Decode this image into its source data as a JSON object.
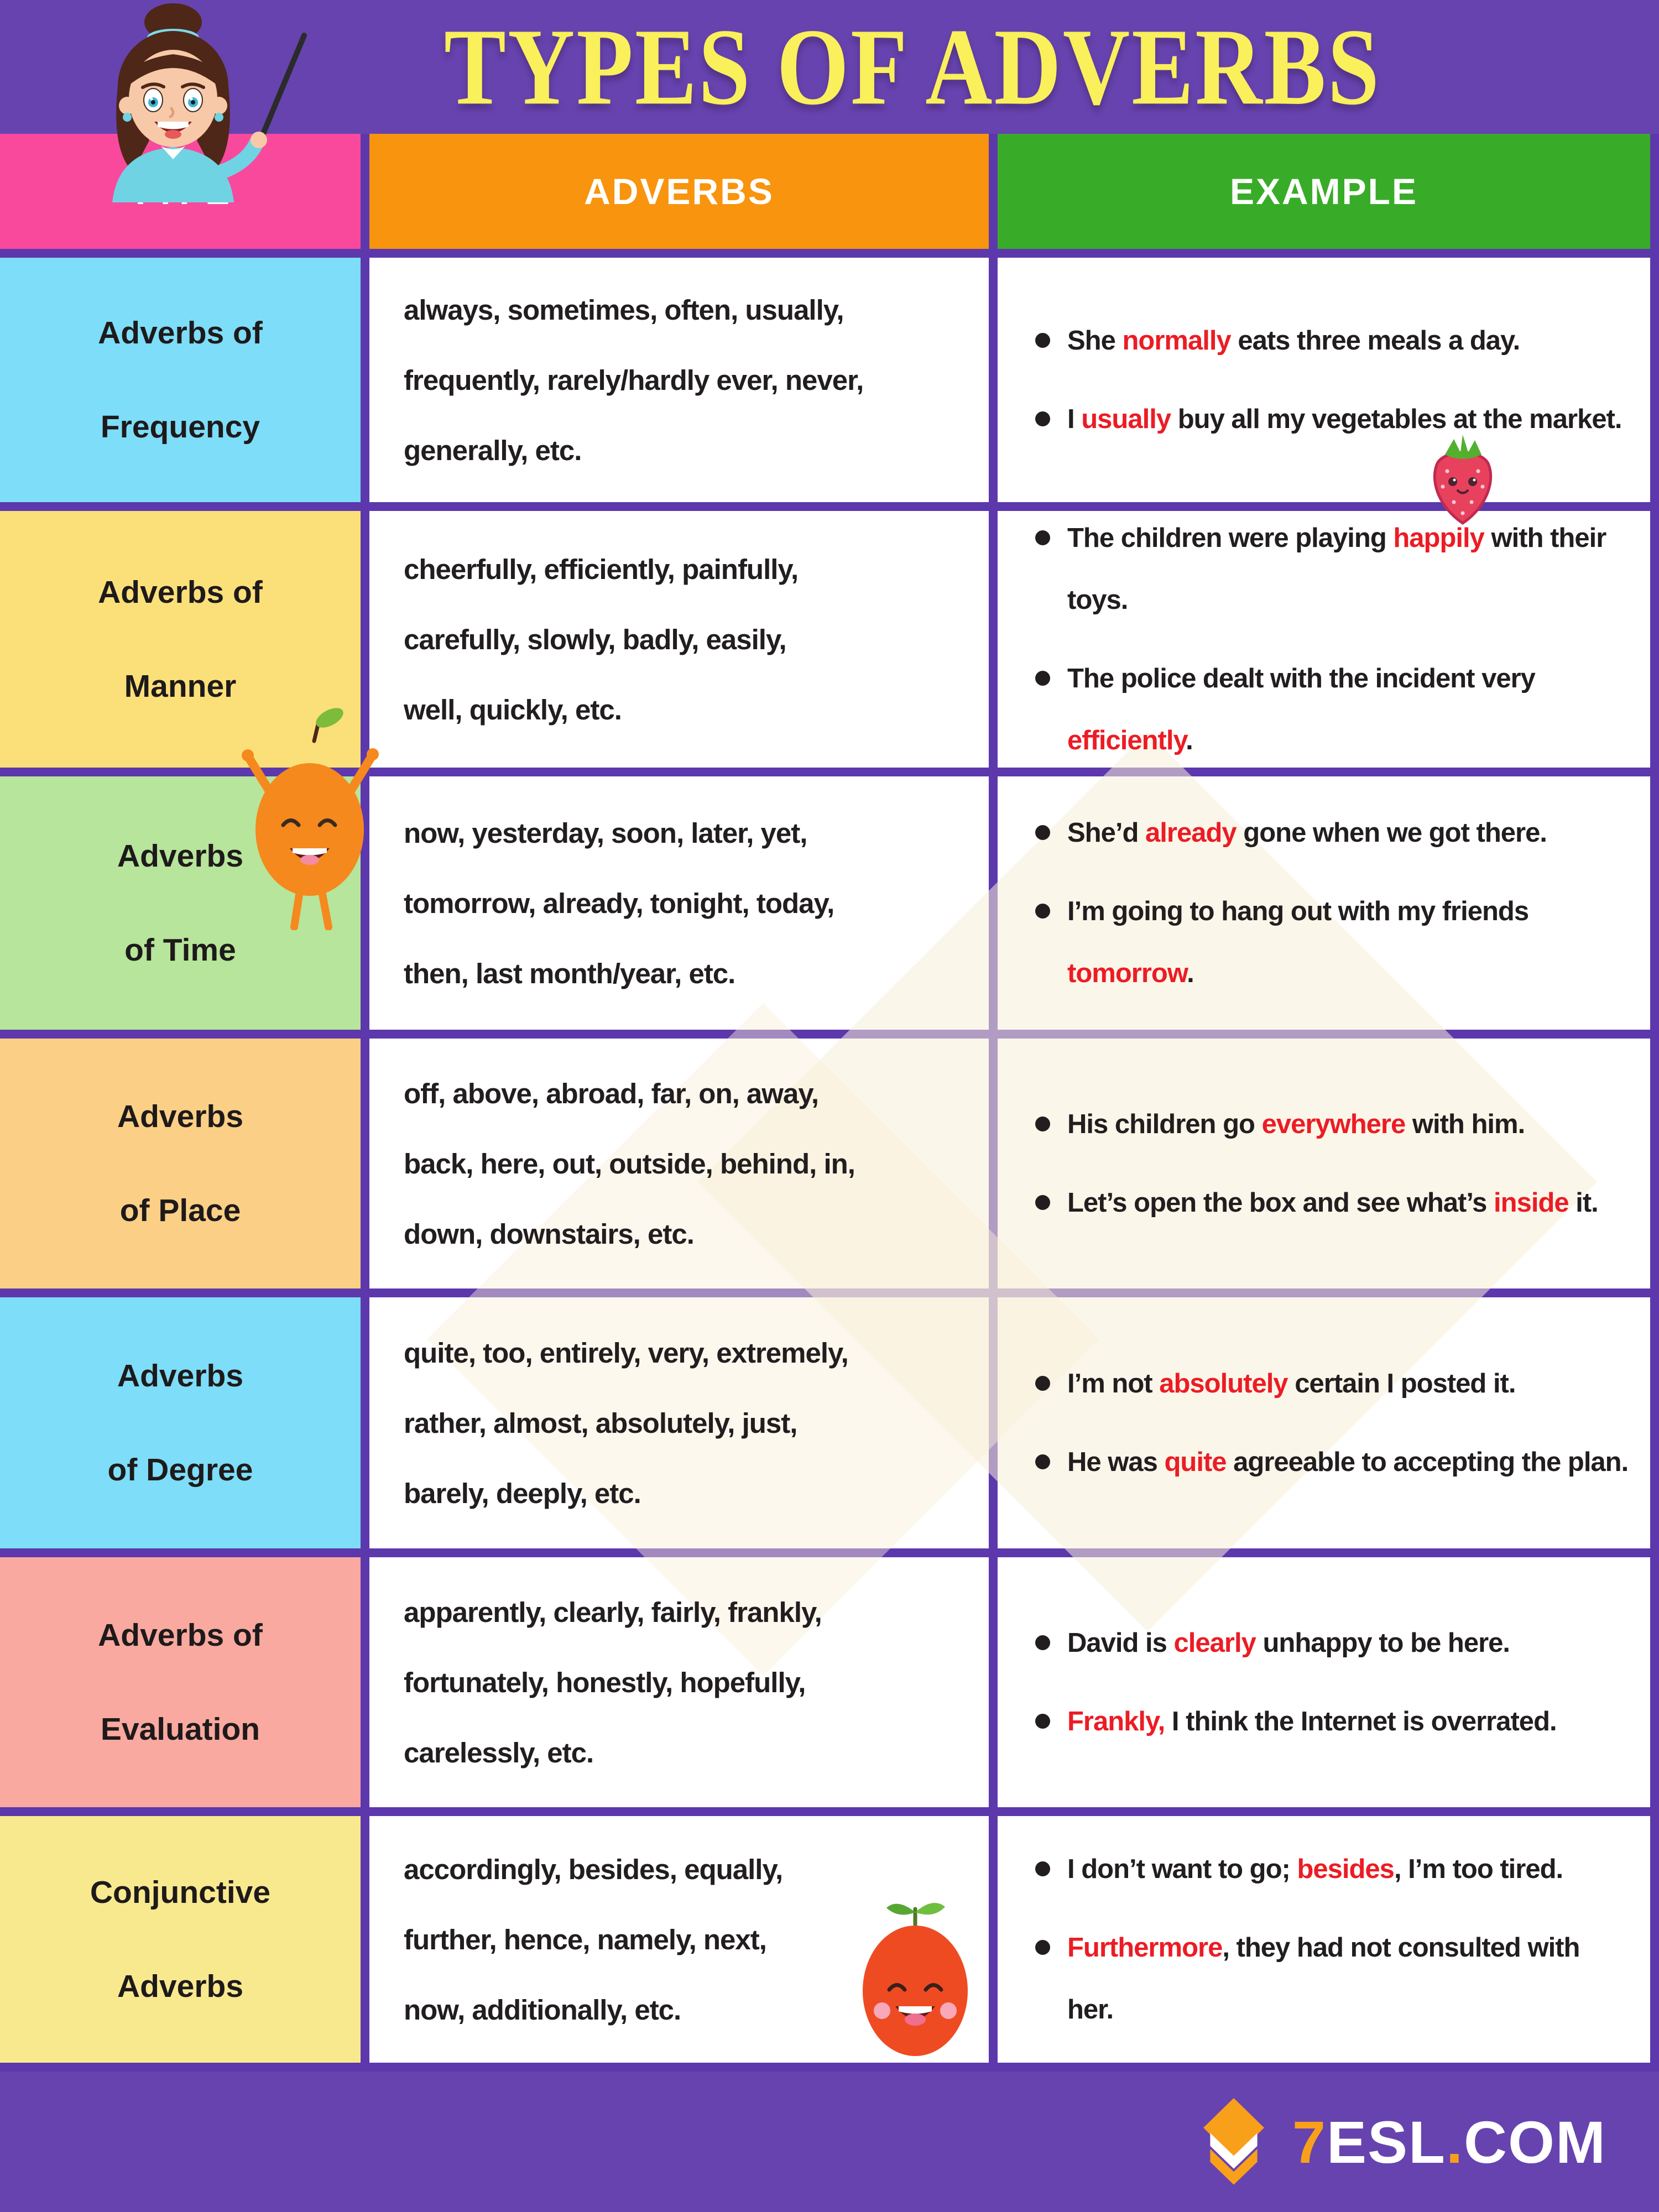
{
  "title": "TYPES OF ADVERBS",
  "table": {
    "headers": {
      "type": "TYPE",
      "adverbs": "ADVERBS",
      "example": "EXAMPLE"
    }
  },
  "rows": [
    {
      "type": "Adverbs of\nFrequency",
      "type_bg": "#7EDDF8",
      "adverbs": "always, sometimes, often, usually,\nfrequently, rarely/hardly ever, never,\ngenerally, etc.",
      "examples": [
        [
          {
            "t": "She "
          },
          {
            "t": "normally",
            "red": true
          },
          {
            "t": " eats three meals a day."
          }
        ],
        [
          {
            "t": "I "
          },
          {
            "t": "usually",
            "red": true
          },
          {
            "t": " buy all my vegetables at the market."
          }
        ]
      ]
    },
    {
      "type": "Adverbs of\nManner",
      "type_bg": "#FBE07A",
      "adverbs": "cheerfully, efficiently, painfully,\ncarefully, slowly, badly, easily,\nwell, quickly, etc.",
      "examples": [
        [
          {
            "t": "The children were playing "
          },
          {
            "t": "happily",
            "red": true
          },
          {
            "t": " with their toys."
          }
        ],
        [
          {
            "t": "The police dealt with the incident very "
          },
          {
            "t": "efficiently",
            "red": true
          },
          {
            "t": "."
          }
        ]
      ]
    },
    {
      "type": "Adverbs\nof Time",
      "type_bg": "#B7E59B",
      "adverbs": "now, yesterday, soon, later, yet,\ntomorrow, already, tonight, today,\nthen, last month/year, etc.",
      "examples": [
        [
          {
            "t": "She’d "
          },
          {
            "t": "already",
            "red": true
          },
          {
            "t": " gone when we got there."
          }
        ],
        [
          {
            "t": "I’m going to hang out with my friends "
          },
          {
            "t": "tomorrow",
            "red": true
          },
          {
            "t": "."
          }
        ]
      ]
    },
    {
      "type": "Adverbs\nof Place",
      "type_bg": "#FBD086",
      "adverbs": "off, above, abroad, far, on, away,\nback, here, out, outside, behind, in,\ndown, downstairs, etc.",
      "examples": [
        [
          {
            "t": "His children go "
          },
          {
            "t": "everywhere",
            "red": true
          },
          {
            "t": " with him."
          }
        ],
        [
          {
            "t": "Let’s open the box and see what’s "
          },
          {
            "t": "inside",
            "red": true
          },
          {
            "t": " it."
          }
        ]
      ]
    },
    {
      "type": "Adverbs\nof Degree",
      "type_bg": "#7EDDF8",
      "adverbs": "quite, too, entirely, very, extremely,\nrather, almost, absolutely, just,\nbarely, deeply, etc.",
      "examples": [
        [
          {
            "t": "I’m not "
          },
          {
            "t": "absolutely",
            "red": true
          },
          {
            "t": " certain I posted it."
          }
        ],
        [
          {
            "t": "He was "
          },
          {
            "t": "quite",
            "red": true
          },
          {
            "t": " agreeable to accepting the plan."
          }
        ]
      ]
    },
    {
      "type": "Adverbs of\nEvaluation",
      "type_bg": "#F9A99F",
      "adverbs": "apparently, clearly, fairly, frankly,\nfortunately, honestly, hopefully,\ncarelessly, etc.",
      "examples": [
        [
          {
            "t": "David is "
          },
          {
            "t": "clearly",
            "red": true
          },
          {
            "t": " unhappy to be here."
          }
        ],
        [
          {
            "t": "Frankly,",
            "red": true
          },
          {
            "t": " I think the Internet is overrated."
          }
        ]
      ]
    },
    {
      "type": "Conjunctive\nAdverbs",
      "type_bg": "#F8E98F",
      "adverbs": "accordingly, besides, equally,\nfurther, hence, namely, next,\nnow, additionally, etc.",
      "examples": [
        [
          {
            "t": "I don’t want to go; "
          },
          {
            "t": "besides",
            "red": true
          },
          {
            "t": ", I’m too tired."
          }
        ],
        [
          {
            "t": "Furthermore",
            "red": true
          },
          {
            "t": ", they had not consulted with her."
          }
        ]
      ]
    }
  ],
  "footer": {
    "brand_segments": [
      {
        "t": "7",
        "orange": true
      },
      {
        "t": "ESL"
      },
      {
        "t": ".",
        "orange": true
      },
      {
        "t": "COM"
      }
    ]
  },
  "colors": {
    "banner_purple": "#6743AF",
    "border_purple": "#5C38AC",
    "title_yellow": "#F9F05B",
    "header_pink": "#F9499C",
    "header_orange": "#F8940D",
    "header_green": "#38AC28",
    "highlight_red": "#EC1C24",
    "logo_orange": "#F9A01B",
    "watermark_cream": "#F8EFD9"
  },
  "decorations": [
    "teacher-girl",
    "orange-character",
    "strawberry",
    "tomato"
  ]
}
